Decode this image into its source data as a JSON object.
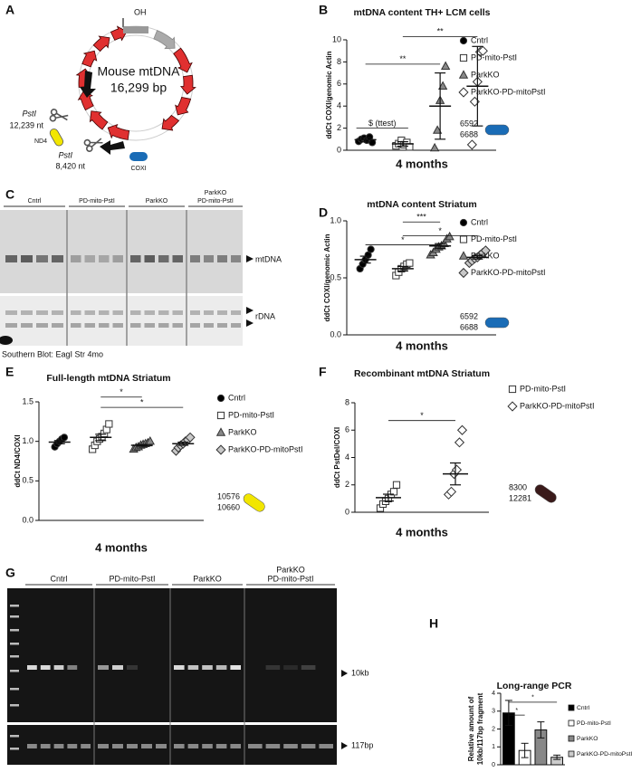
{
  "panel_a": {
    "letter": "A",
    "origin_label": "OH",
    "title": "Mouse mtDNA",
    "size": "16,299 bp",
    "site1_enzyme": "PstI",
    "site1_position": "12,239 nt",
    "gene1": "ND4",
    "site2_enzyme": "PstI",
    "site2_position": "8,420 nt",
    "gene2": "COXI"
  },
  "panel_c": {
    "letter": "C",
    "lane_groups": [
      [
        "Cntrl"
      ],
      [
        "PD-mito-PstI"
      ],
      [
        "ParkKO"
      ],
      [
        "ParkKO",
        "PD-mito-PstI"
      ]
    ],
    "band1": "mtDNA",
    "band2": "rDNA",
    "caption": "Southern Blot: EagI Str 4mo"
  },
  "panel_g": {
    "letter": "G",
    "lane_groups": [
      [
        "Cntrl"
      ],
      [
        "PD-mito-PstI"
      ],
      [
        "ParkKO"
      ],
      [
        "ParkKO",
        "PD-mito-PstI"
      ]
    ],
    "band1": "10kb",
    "band2": "117bp"
  },
  "chart_data": [
    {
      "panel": "B",
      "type": "strip",
      "title": "mtDNA content TH+ LCM cells",
      "ylabel": "ddCt COXI/genomic Actin",
      "xlabel": "4 months",
      "ylim": [
        0,
        10
      ],
      "yticks": [
        0,
        2,
        4,
        6,
        8,
        10
      ],
      "series": [
        {
          "name": "Cntrl",
          "marker": "circle",
          "color": "#000000",
          "values": [
            0.8,
            1.0,
            1.1,
            0.9,
            1.2,
            0.7
          ],
          "mean": 0.95,
          "error": 0.2
        },
        {
          "name": "PD-mito-PstI",
          "marker": "square",
          "color": "#ffffff",
          "values": [
            0.4,
            0.6,
            0.9,
            0.5,
            0.7,
            0.3
          ],
          "mean": 0.57,
          "error": 0.2
        },
        {
          "name": "ParkKO",
          "marker": "triangle",
          "color": "#888888",
          "values": [
            0.2,
            1.8,
            4.5,
            5.8,
            7.6
          ],
          "mean": 4.0,
          "error": 3.0
        },
        {
          "name": "ParkKO-PD-mitoPstI",
          "marker": "diamond",
          "color": "#ffffff",
          "values": [
            0.5,
            4.4,
            6.2,
            8.9,
            9.0
          ],
          "mean": 5.8,
          "error": 3.6
        }
      ],
      "annotations": [
        "$ (ttest)",
        "**",
        "**"
      ],
      "probe": {
        "labels": [
          "6592",
          "6688"
        ],
        "color": "#1a6cb6"
      }
    },
    {
      "panel": "D",
      "type": "strip",
      "title": "mtDNA content Striatum",
      "ylabel": "ddCt COXI/genomic Actin",
      "xlabel": "4 months",
      "ylim": [
        0,
        1
      ],
      "yticks": [
        {
          "value": 0,
          "label": "0.0"
        },
        0.5,
        {
          "value": 1,
          "label": "1.0"
        }
      ],
      "series": [
        {
          "name": "Cntrl",
          "marker": "circle",
          "color": "#000000",
          "values": [
            0.58,
            0.62,
            0.66,
            0.7,
            0.75
          ],
          "mean": 0.66,
          "error": 0.03
        },
        {
          "name": "PD-mito-PstI",
          "marker": "square",
          "color": "#ffffff",
          "values": [
            0.52,
            0.55,
            0.58,
            0.6,
            0.62,
            0.63
          ],
          "mean": 0.58,
          "error": 0.02
        },
        {
          "name": "ParkKO",
          "marker": "triangle",
          "color": "#888888",
          "values": [
            0.7,
            0.72,
            0.75,
            0.77,
            0.78,
            0.8,
            0.84,
            0.86
          ],
          "mean": 0.78,
          "error": 0.02
        },
        {
          "name": "ParkKO-PD-mitoPstI",
          "marker": "diamond",
          "color": "#c8c8c8",
          "values": [
            0.63,
            0.65,
            0.67,
            0.68,
            0.7,
            0.72,
            0.74
          ],
          "mean": 0.68,
          "error": 0.015
        }
      ],
      "annotations": [
        "***",
        "*",
        "*"
      ],
      "probe": {
        "labels": [
          "6592",
          "6688"
        ],
        "color": "#1a6cb6"
      }
    },
    {
      "panel": "E",
      "type": "strip",
      "title": "Full-length mtDNA Striatum",
      "ylabel": "ddCt ND4/COXI",
      "xlabel": "4 months",
      "ylim": [
        0,
        1.5
      ],
      "yticks": [
        {
          "value": 0,
          "label": "0.0"
        },
        0.5,
        {
          "value": 1,
          "label": "1.0"
        },
        1.5
      ],
      "series": [
        {
          "name": "Cntrl",
          "marker": "circle",
          "color": "#000000",
          "values": [
            0.93,
            0.97,
            1.0,
            1.03,
            1.05
          ],
          "mean": 0.99,
          "error": 0.02
        },
        {
          "name": "PD-mito-PstI",
          "marker": "square",
          "color": "#ffffff",
          "values": [
            0.9,
            0.95,
            1.0,
            1.03,
            1.06,
            1.1,
            1.15,
            1.22
          ],
          "mean": 1.05,
          "error": 0.04
        },
        {
          "name": "ParkKO",
          "marker": "triangle",
          "color": "#888888",
          "values": [
            0.9,
            0.92,
            0.93,
            0.95,
            0.96,
            0.97,
            0.98,
            1.0
          ],
          "mean": 0.95,
          "error": 0.01
        },
        {
          "name": "ParkKO-PD-mitoPstI",
          "marker": "diamond",
          "color": "#c8c8c8",
          "values": [
            0.88,
            0.92,
            0.95,
            0.97,
            1.0,
            1.02,
            1.05
          ],
          "mean": 0.97,
          "error": 0.02
        }
      ],
      "annotations": [
        "*",
        "*"
      ],
      "probe": {
        "labels": [
          "10576",
          "10660"
        ],
        "color": "#f2e600"
      }
    },
    {
      "panel": "F",
      "type": "strip",
      "title": "Recombinant mtDNA Striatum",
      "ylabel": "ddCt PstDel/COXI",
      "xlabel": "4 months",
      "ylim": [
        0,
        8
      ],
      "yticks": [
        0,
        2,
        4,
        6,
        8
      ],
      "series": [
        {
          "name": "PD-mito-PstI",
          "marker": "square",
          "color": "#ffffff",
          "values": [
            0.3,
            0.6,
            0.8,
            1.0,
            1.3,
            1.5,
            2.0
          ],
          "mean": 1.07,
          "error": 0.25
        },
        {
          "name": "ParkKO-PD-mitoPstI",
          "marker": "diamond",
          "color": "#ffffff",
          "values": [
            1.3,
            1.5,
            2.8,
            3.1,
            5.1,
            6.0
          ],
          "mean": 2.8,
          "error": 0.8
        }
      ],
      "annotations": [
        "*"
      ],
      "probe": {
        "labels": [
          "8300",
          "12281"
        ],
        "color": "#3a1a1a"
      }
    },
    {
      "panel": "H",
      "type": "bar",
      "title": "Long-range PCR",
      "ylabel": [
        "Relative amount of",
        "10kb/117bp fragment"
      ],
      "ylim": [
        0,
        4
      ],
      "yticks": [
        0,
        1,
        2,
        3,
        4
      ],
      "series": [
        {
          "name": "Cntrl",
          "color": "#000000",
          "value": 2.9,
          "error": 0.7
        },
        {
          "name": "PD-mito-PstI",
          "color": "#ffffff",
          "value": 0.8,
          "error": 0.4
        },
        {
          "name": "ParkKO",
          "color": "#888888",
          "value": 1.95,
          "error": 0.45
        },
        {
          "name": "ParkKO-PD-mitoPstI",
          "color": "#cccccc",
          "value": 0.42,
          "error": 0.12
        }
      ],
      "annotations": [
        "*",
        "*"
      ]
    }
  ]
}
